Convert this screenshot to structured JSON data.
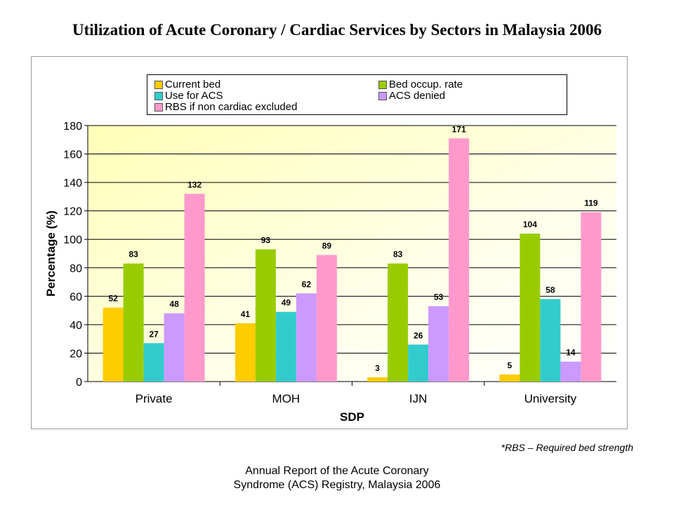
{
  "title": "Utilization of Acute Coronary / Cardiac Services by Sectors in Malaysia 2006",
  "footnote": "*RBS – Required bed strength",
  "source_line1": "Annual Report of the Acute Coronary",
  "source_line2": "Syndrome (ACS) Registry, Malaysia 2006",
  "chart_data": {
    "type": "bar",
    "title": "Utilization of Acute Coronary / Cardiac Services by Sectors in Malaysia 2006",
    "xlabel": "SDP",
    "ylabel": "Percentage (%)",
    "ylim": [
      0,
      180
    ],
    "yticks": [
      0,
      20,
      40,
      60,
      80,
      100,
      120,
      140,
      160,
      180
    ],
    "grid": true,
    "legend_position": "top",
    "categories": [
      "Private",
      "MOH",
      "IJN",
      "University"
    ],
    "series": [
      {
        "name": "Current bed",
        "color": "#FFCC00",
        "values": [
          52,
          41,
          3,
          5
        ]
      },
      {
        "name": "Bed occup. rate",
        "color": "#99CC00",
        "values": [
          83,
          93,
          83,
          104
        ]
      },
      {
        "name": "Use for ACS",
        "color": "#33CCCC",
        "values": [
          27,
          49,
          26,
          58
        ]
      },
      {
        "name": "ACS denied",
        "color": "#CC99FF",
        "values": [
          48,
          62,
          53,
          14
        ]
      },
      {
        "name": "RBS if non cardiac excluded",
        "color": "#FF99CC",
        "values": [
          132,
          89,
          171,
          119
        ]
      }
    ]
  }
}
